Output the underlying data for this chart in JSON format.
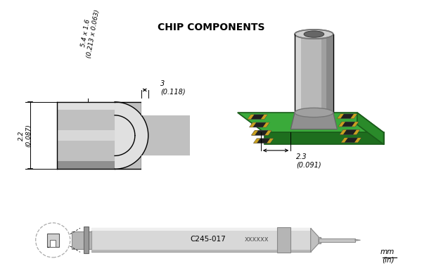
{
  "title": "CHIP COMPONENTS",
  "bg_color": "#ffffff",
  "dim_label_1": "2.2\n(0.087)",
  "dim_label_2": "5.4 x 1.6\n(0.213 x 0.063)",
  "dim_label_3": "3\n(0.118)",
  "dim_label_4": "2.3\n(0.091)",
  "unit_label": "mm\n(in)",
  "part_number": "C245-017",
  "series": "xxxxxx",
  "title_fontsize": 10,
  "gray_light": "#e0e0e0",
  "gray_mid": "#c0c0c0",
  "gray_dark": "#909090",
  "gray_darker": "#707070",
  "green_top": "#3aaa3a",
  "green_side": "#2a8a2a",
  "green_front": "#1e6e1e",
  "chip_dark": "#202020",
  "chip_gold": "#c8a020"
}
